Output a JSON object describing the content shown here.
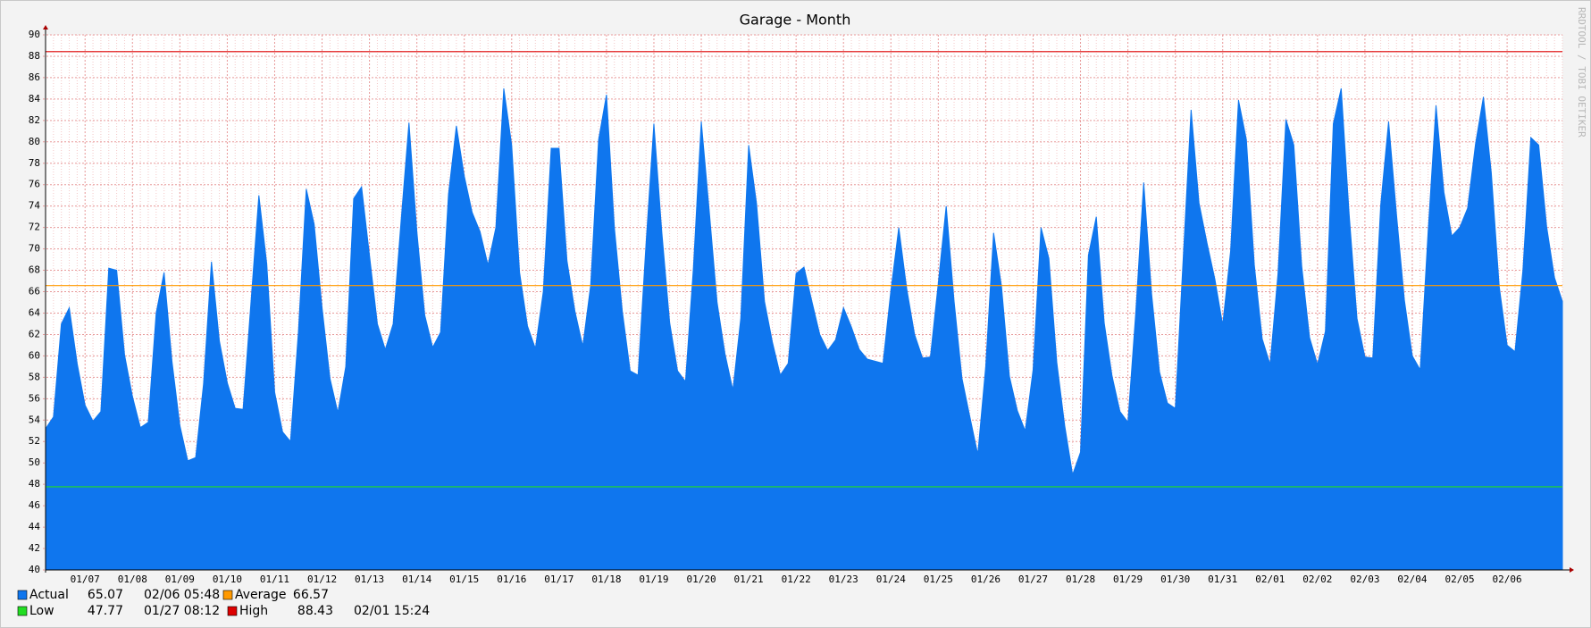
{
  "chart_data": {
    "type": "area",
    "title": "Garage - Month",
    "watermark": "RRDTOOL / TOBI OETIKER",
    "categories": [
      null,
      null,
      null,
      null,
      null,
      "01/07",
      null,
      null,
      null,
      null,
      null,
      "01/08",
      null,
      null,
      null,
      null,
      null,
      "01/09",
      null,
      null,
      null,
      null,
      null,
      "01/10",
      null,
      null,
      null,
      null,
      null,
      "01/11",
      null,
      null,
      null,
      null,
      null,
      "01/12",
      null,
      null,
      null,
      null,
      null,
      "01/13",
      null,
      null,
      null,
      null,
      null,
      "01/14",
      null,
      null,
      null,
      null,
      null,
      "01/15",
      null,
      null,
      null,
      null,
      null,
      "01/16",
      null,
      null,
      null,
      null,
      null,
      "01/17",
      null,
      null,
      null,
      null,
      null,
      "01/18",
      null,
      null,
      null,
      null,
      null,
      "01/19",
      null,
      null,
      null,
      null,
      null,
      "01/20",
      null,
      null,
      null,
      null,
      null,
      "01/21",
      null,
      null,
      null,
      null,
      null,
      "01/22",
      null,
      null,
      null,
      null,
      null,
      "01/23",
      null,
      null,
      null,
      null,
      null,
      "01/24",
      null,
      null,
      null,
      null,
      null,
      "01/25",
      null,
      null,
      null,
      null,
      null,
      "01/26",
      null,
      null,
      null,
      null,
      null,
      "01/27",
      null,
      null,
      null,
      null,
      null,
      "01/28",
      null,
      null,
      null,
      null,
      null,
      "01/29",
      null,
      null,
      null,
      null,
      null,
      "01/30",
      null,
      null,
      null,
      null,
      null,
      "01/31",
      null,
      null,
      null,
      null,
      null,
      "02/01",
      null,
      null,
      null,
      null,
      null,
      "02/02",
      null,
      null,
      null,
      null,
      null,
      "02/03",
      null,
      null,
      null,
      null,
      null,
      "02/04",
      null,
      null,
      null,
      null,
      null,
      "02/05",
      null,
      null,
      null,
      null,
      null,
      "02/06",
      null,
      null,
      null,
      null,
      null,
      null,
      null
    ],
    "series": [
      {
        "name": "Actual",
        "color": "#0f76ee",
        "last": 65.07,
        "last_time": "02/06 05:48",
        "values": [
          53.2,
          54.3,
          63,
          64.5,
          59.3,
          55.4,
          53.9,
          54.8,
          68.2,
          68,
          60.1,
          56.2,
          53.3,
          53.8,
          64,
          67.8,
          59.5,
          53.5,
          50.2,
          50.5,
          57.4,
          68.8,
          61.4,
          57.5,
          55.1,
          55,
          65,
          75,
          68.6,
          56.6,
          52.9,
          52,
          62.2,
          75.6,
          72.3,
          64.5,
          57.9,
          54.7,
          59,
          74.7,
          75.8,
          69.4,
          63,
          60.6,
          63,
          72.6,
          81.8,
          71.6,
          63.8,
          60.8,
          62.2,
          75.1,
          81.5,
          76.8,
          73.4,
          71.6,
          68.5,
          72,
          85,
          79.7,
          67.8,
          62.8,
          60.7,
          66,
          79.4,
          79.4,
          68.9,
          64.2,
          60.9,
          66.6,
          80.2,
          84.4,
          72,
          64.2,
          58.6,
          58.2,
          70.4,
          81.7,
          71.6,
          63.1,
          58.6,
          57.6,
          68.2,
          81.9,
          73.6,
          65,
          60.2,
          56.8,
          63.5,
          79.7,
          74.2,
          65.1,
          61.3,
          58.2,
          59.3,
          67.7,
          68.3,
          65.1,
          62,
          60.5,
          61.5,
          64.5,
          62.7,
          60.6,
          59.7,
          59.5,
          59.3,
          66.1,
          72,
          66.3,
          62,
          59.8,
          59.9,
          66.8,
          74,
          65.1,
          57.9,
          54.3,
          50.8,
          59,
          71.5,
          66.5,
          58.1,
          54.9,
          53,
          58.7,
          72,
          69.1,
          59.4,
          53.5,
          48.9,
          51,
          69.4,
          73,
          63.1,
          58.1,
          54.8,
          53.8,
          64.1,
          76.2,
          65.8,
          58.5,
          55.6,
          55.1,
          69.1,
          83,
          74.3,
          70.6,
          67.2,
          62.9,
          69.8,
          83.9,
          80.2,
          68.5,
          61.6,
          59.2,
          67.7,
          82.1,
          79.7,
          68.4,
          61.7,
          59.2,
          62.3,
          81.7,
          85,
          73.3,
          63.5,
          59.9,
          59.8,
          74.1,
          81.9,
          73.2,
          65.2,
          60,
          58.7,
          71.6,
          83.4,
          75.3,
          71.2,
          72,
          73.8,
          79.8,
          84.2,
          77.1,
          66.5,
          61,
          60.4,
          68,
          80.4,
          79.7,
          72.1,
          67.3,
          65.1
        ]
      }
    ],
    "rules": [
      {
        "name": "Average",
        "color": "#ff9900",
        "value": 66.57
      },
      {
        "name": "Low",
        "color": "#22dd22",
        "value": 47.77,
        "time": "01/27 08:12"
      },
      {
        "name": "High",
        "color": "#dd0000",
        "value": 88.43,
        "time": "02/01 15:24"
      }
    ],
    "ylim": [
      40,
      90
    ],
    "yticks": [
      40,
      42,
      44,
      46,
      48,
      50,
      52,
      54,
      56,
      58,
      60,
      62,
      64,
      66,
      68,
      70,
      72,
      74,
      76,
      78,
      80,
      82,
      84,
      86,
      88,
      90
    ],
    "grid": true
  }
}
